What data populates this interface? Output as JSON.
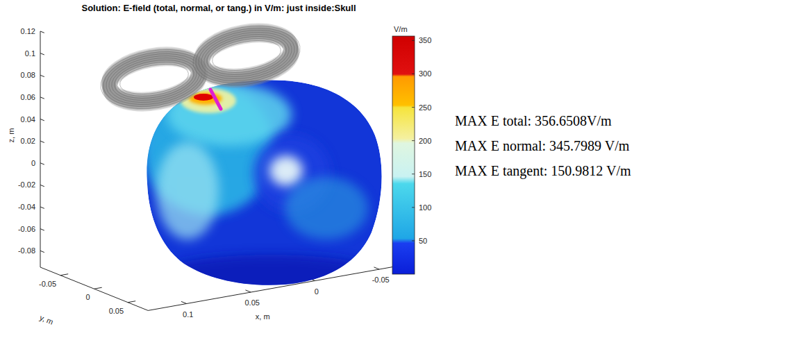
{
  "chart_data": {
    "type": "surface",
    "title": "Solution: E-field (total, normal, or tang.) in V/m: just inside:Skull",
    "x_label": "x, m",
    "y_label": "y, m",
    "z_label": "z, m",
    "xlim": [
      -0.07,
      0.13
    ],
    "xticks": [
      -0.05,
      0,
      0.05,
      0.1
    ],
    "ylim": [
      -0.08,
      0.08
    ],
    "yticks": [
      -0.05,
      0,
      0.05
    ],
    "zlim": [
      -0.095,
      0.12
    ],
    "zticks": [
      -0.08,
      -0.06,
      -0.04,
      -0.02,
      0,
      0.02,
      0.04,
      0.06,
      0.08,
      0.1,
      0.12
    ],
    "colorbar": {
      "label": "V/m",
      "range": [
        0,
        356.6508
      ],
      "ticks": [
        50,
        100,
        150,
        200,
        250,
        300,
        350
      ]
    },
    "annotations": [
      "MAX E total: 356.6508V/m",
      "MAX E normal: 345.7989 V/m",
      "MAX E tangent: 150.9812 V/m"
    ]
  }
}
